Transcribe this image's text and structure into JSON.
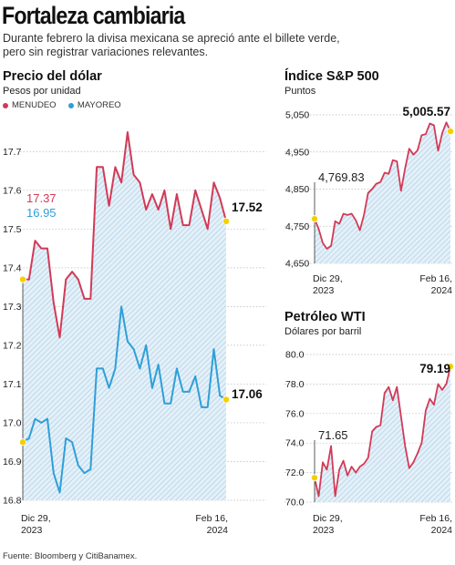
{
  "header": {
    "title": "Fortaleza cambiaria",
    "subtitle_line1": "Durante febrero la divisa mexicana se apreció ante el billete verde,",
    "subtitle_line2": "pero sin registrar variaciones relevantes."
  },
  "source": "Fuente: Bloomberg y CitiBanamex.",
  "colors": {
    "menudeo": "#d23a57",
    "mayoreo": "#2f9fd8",
    "sp500": "#d23a57",
    "wti": "#d23a57",
    "hatch": "#a9cde6",
    "marker": "#f4d000"
  },
  "chart_data": [
    {
      "id": "dolar",
      "type": "line",
      "title": "Precio del dólar",
      "ylabel": "Pesos por unidad",
      "legend": [
        "MENUDEO",
        "MAYOREO"
      ],
      "ylim": [
        16.8,
        17.75
      ],
      "yticks": [
        16.8,
        16.9,
        17.0,
        17.1,
        17.2,
        17.3,
        17.4,
        17.5,
        17.6,
        17.7
      ],
      "x_start_label": [
        "Dic 29,",
        "2023"
      ],
      "x_end_label": [
        "Feb 16,",
        "2024"
      ],
      "start_labels": {
        "menudeo": "17.37",
        "mayoreo": "16.95"
      },
      "end_labels": {
        "menudeo": "17.52",
        "mayoreo": "17.06"
      },
      "series": [
        {
          "name": "MENUDEO",
          "values": [
            17.37,
            17.37,
            17.47,
            17.45,
            17.45,
            17.31,
            17.22,
            17.37,
            17.39,
            17.37,
            17.32,
            17.32,
            17.66,
            17.66,
            17.56,
            17.66,
            17.62,
            17.75,
            17.64,
            17.62,
            17.55,
            17.59,
            17.55,
            17.6,
            17.5,
            17.59,
            17.51,
            17.51,
            17.6,
            17.55,
            17.5,
            17.62,
            17.58,
            17.52
          ]
        },
        {
          "name": "MAYOREO",
          "values": [
            16.95,
            16.96,
            17.01,
            17.0,
            17.01,
            16.87,
            16.82,
            16.96,
            16.95,
            16.89,
            16.87,
            16.88,
            17.14,
            17.14,
            17.09,
            17.14,
            17.3,
            17.21,
            17.19,
            17.14,
            17.2,
            17.09,
            17.15,
            17.05,
            17.05,
            17.14,
            17.08,
            17.08,
            17.12,
            17.04,
            17.04,
            17.19,
            17.07,
            17.06
          ]
        }
      ]
    },
    {
      "id": "sp500",
      "type": "area",
      "title": "Índice S&P 500",
      "ylabel": "Puntos",
      "ylim": [
        4650,
        5050
      ],
      "yticks": [
        4650,
        4750,
        4850,
        4950,
        5050
      ],
      "ytick_labels": [
        "4,650",
        "4,750",
        "4,850",
        "4,950",
        "5,050"
      ],
      "x_start_label": [
        "Dic 29,",
        "2023"
      ],
      "x_end_label": [
        "Feb 16,",
        "2024"
      ],
      "start_label": "4,769.83",
      "end_label": "5,005.57",
      "values": [
        4769.83,
        4742.8,
        4704.8,
        4689.2,
        4697.2,
        4763.5,
        4756.5,
        4783.5,
        4780.2,
        4783.8,
        4766.0,
        4739.2,
        4780.9,
        4839.8,
        4850.4,
        4864.6,
        4868.6,
        4894.2,
        4890.9,
        4927.9,
        4924.9,
        4845.7,
        4906.2,
        4958.6,
        4942.8,
        4954.2,
        4995.1,
        4997.9,
        5026.6,
        5021.8,
        4953.2,
        5000.6,
        5029.7,
        5005.57
      ]
    },
    {
      "id": "wti",
      "type": "area",
      "title": "Petróleo WTI",
      "ylabel": "Dólares por barril",
      "ylim": [
        70.0,
        80.0
      ],
      "yticks": [
        70.0,
        72.0,
        74.0,
        76.0,
        78.0,
        80.0
      ],
      "ytick_labels": [
        "70.0",
        "72.0",
        "74.0",
        "76.0",
        "78.0",
        "80.0"
      ],
      "x_start_label": [
        "Dic 29,",
        "2023"
      ],
      "x_end_label": [
        "Feb 16,",
        "2024"
      ],
      "start_label": "71.65",
      "end_label": "79.19",
      "values": [
        71.65,
        70.4,
        72.7,
        72.2,
        73.8,
        70.4,
        72.2,
        72.8,
        71.8,
        72.4,
        72.0,
        72.4,
        72.6,
        73.0,
        74.8,
        75.1,
        75.2,
        77.4,
        77.8,
        76.9,
        77.8,
        75.8,
        73.8,
        72.3,
        72.7,
        73.3,
        74.0,
        76.2,
        77.0,
        76.6,
        78.0,
        77.6,
        78.0,
        79.19
      ]
    }
  ]
}
